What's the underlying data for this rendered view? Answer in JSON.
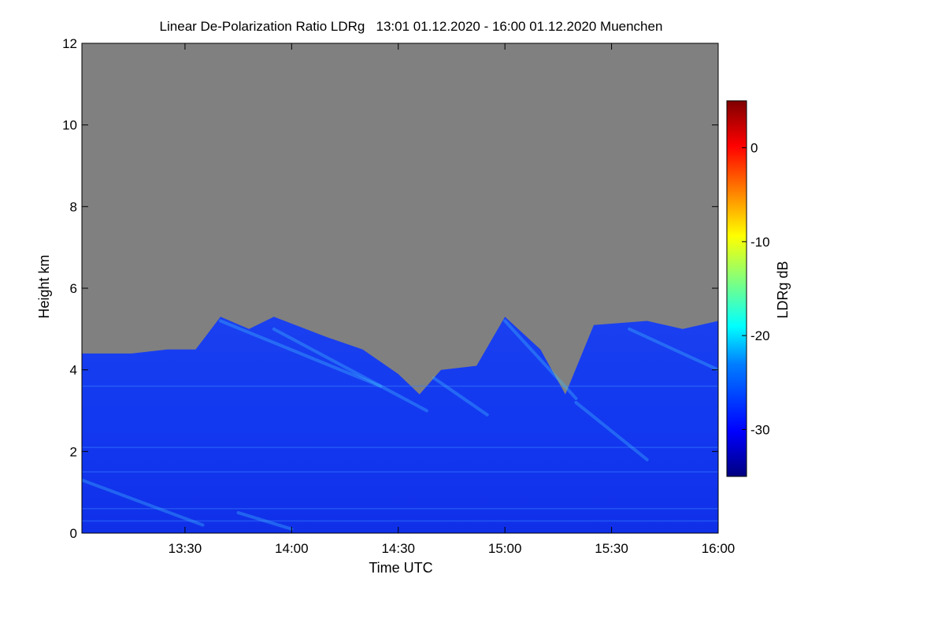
{
  "chart_data": {
    "type": "heatmap",
    "title": "Linear De-Polarization Ratio LDRg   13:01 01.12.2020 - 16:00 01.12.2020 Muenchen",
    "xlabel": "Time UTC",
    "ylabel": "Height km",
    "colorbar_label": "LDRg dB",
    "xlim": [
      "13:01",
      "16:00"
    ],
    "ylim": [
      0,
      12
    ],
    "x_ticks": [
      "13:30",
      "14:00",
      "14:30",
      "15:00",
      "15:30",
      "16:00"
    ],
    "y_ticks": [
      "0",
      "2",
      "4",
      "6",
      "8",
      "10",
      "12"
    ],
    "colorbar_range": [
      -35,
      5
    ],
    "colorbar_ticks": [
      "0",
      "-10",
      "-20",
      "-30"
    ],
    "no_signal_color": "#808080",
    "colormap": [
      "#00007f",
      "#0000ff",
      "#007fff",
      "#00ffff",
      "#7fff7f",
      "#ffff00",
      "#ff7f00",
      "#ff0000",
      "#7f0000"
    ],
    "signal_top_km": [
      {
        "time": "13:01",
        "height": 4.4
      },
      {
        "time": "13:15",
        "height": 4.4
      },
      {
        "time": "13:25",
        "height": 4.5
      },
      {
        "time": "13:33",
        "height": 4.5
      },
      {
        "time": "13:40",
        "height": 5.3
      },
      {
        "time": "13:48",
        "height": 5.0
      },
      {
        "time": "13:55",
        "height": 5.3
      },
      {
        "time": "14:10",
        "height": 4.8
      },
      {
        "time": "14:20",
        "height": 4.5
      },
      {
        "time": "14:30",
        "height": 3.9
      },
      {
        "time": "14:36",
        "height": 3.4
      },
      {
        "time": "14:42",
        "height": 4.0
      },
      {
        "time": "14:52",
        "height": 4.1
      },
      {
        "time": "15:00",
        "height": 5.3
      },
      {
        "time": "15:10",
        "height": 4.5
      },
      {
        "time": "15:17",
        "height": 3.4
      },
      {
        "time": "15:25",
        "height": 5.1
      },
      {
        "time": "15:40",
        "height": 5.2
      },
      {
        "time": "15:50",
        "height": 5.0
      },
      {
        "time": "16:00",
        "height": 5.2
      }
    ],
    "typical_ldr_db": -31
  }
}
